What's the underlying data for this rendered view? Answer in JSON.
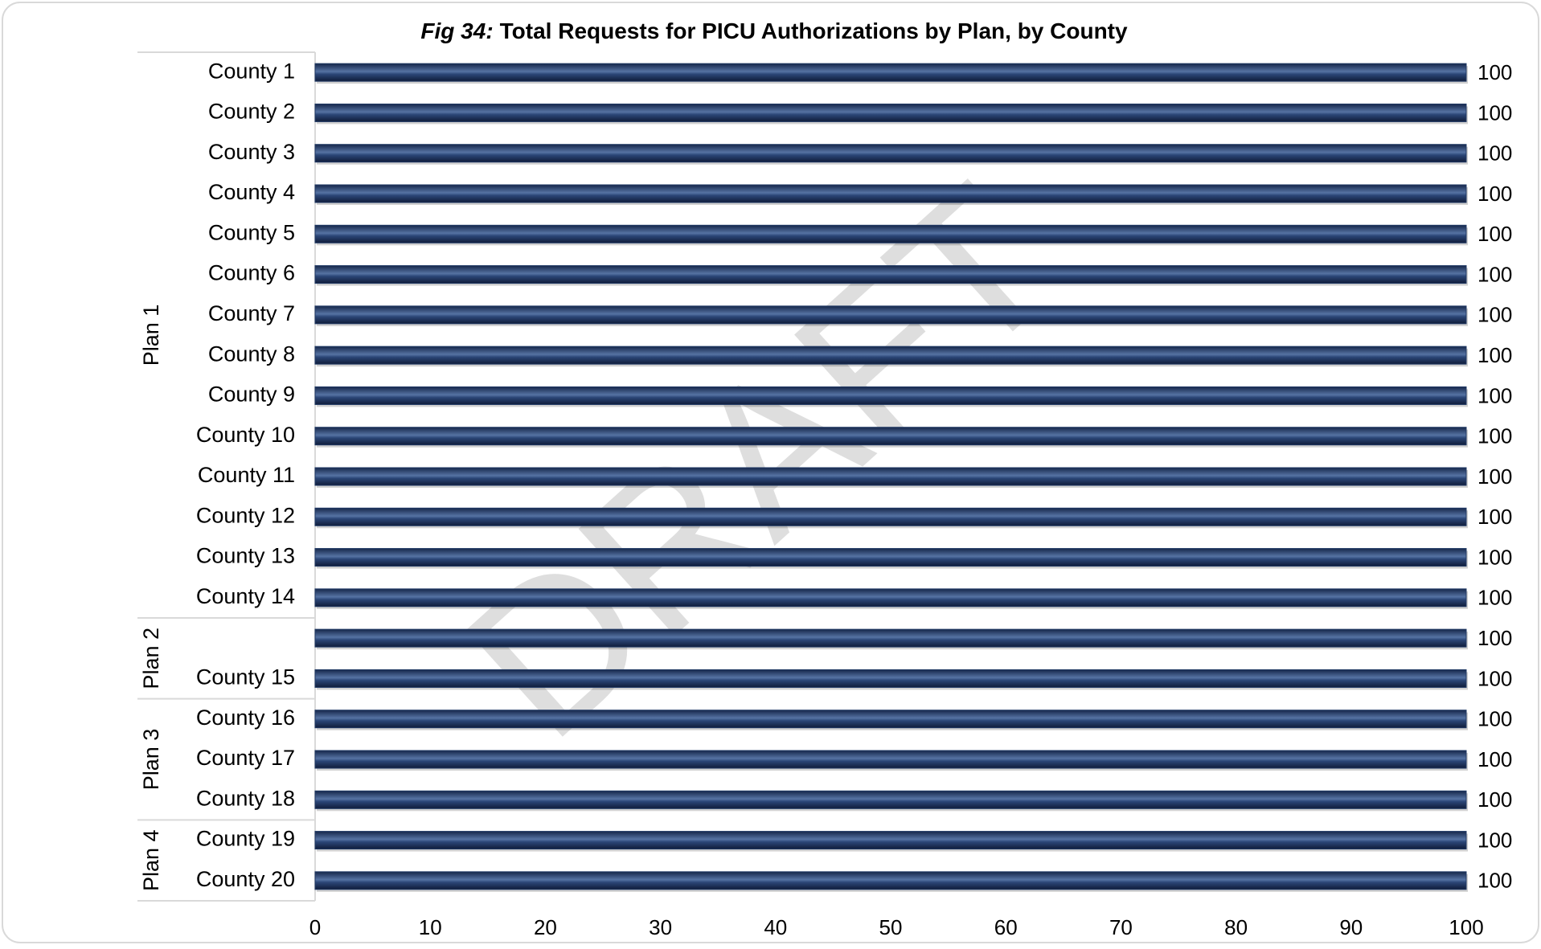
{
  "chart_data": {
    "type": "bar",
    "orientation": "horizontal",
    "title": [
      "Fig 34:",
      "Total Requests for PICU Authorizations by Plan, by County"
    ],
    "watermark": "DRAFT",
    "groups": [
      {
        "name": "Plan 1",
        "categories": [
          "County 1",
          "County 2",
          "County 3",
          "County 4",
          "County 5",
          "County 6",
          "County 7",
          "County 8",
          "County 9",
          "County 10",
          "County 11",
          "County 12",
          "County 13",
          "County 14"
        ]
      },
      {
        "name": "Plan 2",
        "categories": [
          null,
          "County 15"
        ]
      },
      {
        "name": "Plan 3",
        "categories": [
          "County 16",
          "County 17",
          "County 18"
        ]
      },
      {
        "name": "Plan 4",
        "categories": [
          "County 19",
          "County 20"
        ]
      }
    ],
    "values": [
      100,
      100,
      100,
      100,
      100,
      100,
      100,
      100,
      100,
      100,
      100,
      100,
      100,
      100,
      100,
      100,
      100,
      100,
      100,
      100,
      100
    ],
    "color": "#1f3864",
    "xlim": [
      0,
      100
    ],
    "xticks": [
      0,
      10,
      20,
      30,
      40,
      50,
      60,
      70,
      80,
      90,
      100
    ],
    "grid": false
  }
}
